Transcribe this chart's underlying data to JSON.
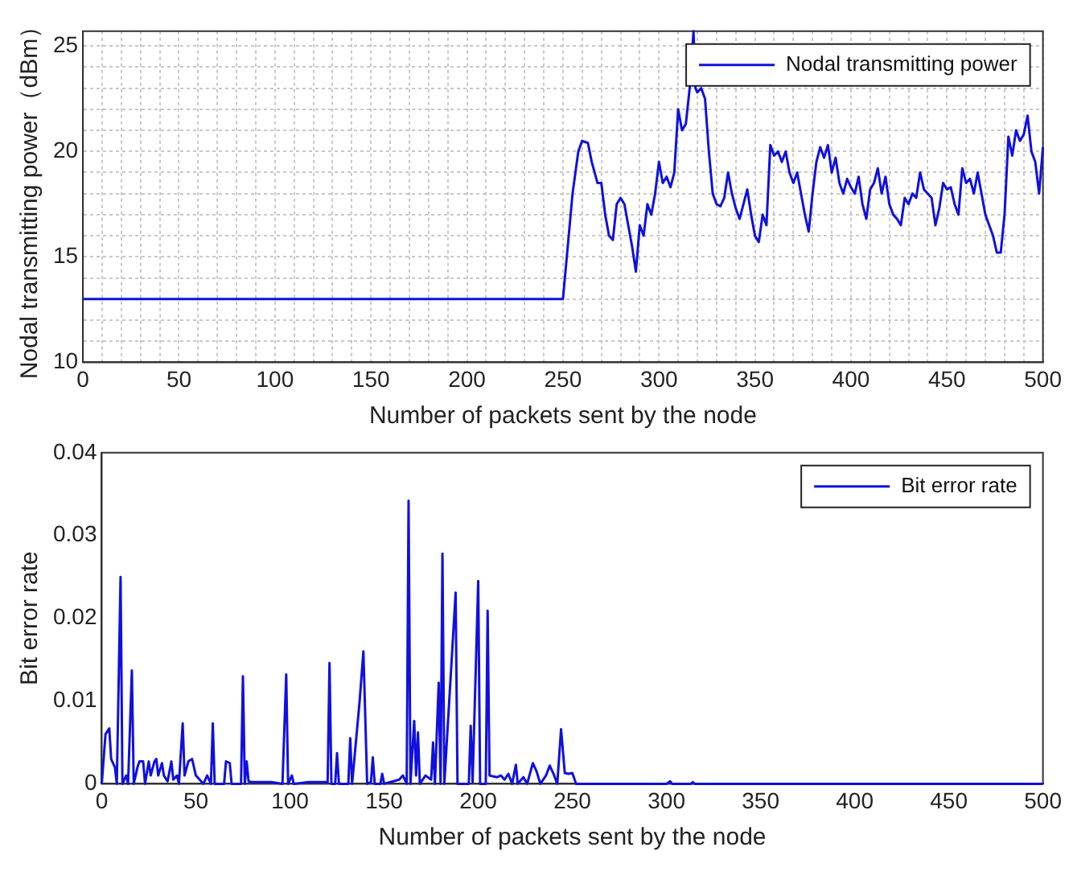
{
  "chart_data": [
    {
      "type": "line",
      "xlabel": "Number of packets sent by the node",
      "ylabel": "Nodal transmitting power（dBm）",
      "xlim": [
        0,
        500
      ],
      "ylim": [
        10,
        25.7
      ],
      "xticks": [
        0,
        {
          "value": 10,
          "label": null
        },
        {
          "value": 20,
          "label": null
        },
        {
          "value": 30,
          "label": null
        },
        {
          "value": 40,
          "label": null
        },
        50,
        {
          "value": 60,
          "label": null
        },
        {
          "value": 70,
          "label": null
        },
        {
          "value": 80,
          "label": null
        },
        {
          "value": 90,
          "label": null
        },
        100,
        {
          "value": 110,
          "label": null
        },
        {
          "value": 120,
          "label": null
        },
        {
          "value": 130,
          "label": null
        },
        {
          "value": 140,
          "label": null
        },
        150,
        {
          "value": 160,
          "label": null
        },
        {
          "value": 170,
          "label": null
        },
        {
          "value": 180,
          "label": null
        },
        {
          "value": 190,
          "label": null
        },
        200,
        {
          "value": 210,
          "label": null
        },
        {
          "value": 220,
          "label": null
        },
        {
          "value": 230,
          "label": null
        },
        {
          "value": 240,
          "label": null
        },
        250,
        {
          "value": 260,
          "label": null
        },
        {
          "value": 270,
          "label": null
        },
        {
          "value": 280,
          "label": null
        },
        {
          "value": 290,
          "label": null
        },
        300,
        {
          "value": 310,
          "label": null
        },
        {
          "value": 320,
          "label": null
        },
        {
          "value": 330,
          "label": null
        },
        {
          "value": 340,
          "label": null
        },
        350,
        {
          "value": 360,
          "label": null
        },
        {
          "value": 370,
          "label": null
        },
        {
          "value": 380,
          "label": null
        },
        {
          "value": 390,
          "label": null
        },
        400,
        {
          "value": 410,
          "label": null
        },
        {
          "value": 420,
          "label": null
        },
        {
          "value": 430,
          "label": null
        },
        {
          "value": 440,
          "label": null
        },
        450,
        {
          "value": 460,
          "label": null
        },
        {
          "value": 470,
          "label": null
        },
        {
          "value": 480,
          "label": null
        },
        {
          "value": 490,
          "label": null
        },
        500
      ],
      "yticks": [
        10,
        {
          "value": 11,
          "label": null
        },
        {
          "value": 12,
          "label": null
        },
        {
          "value": 13,
          "label": null
        },
        {
          "value": 14,
          "label": null
        },
        15,
        {
          "value": 16,
          "label": null
        },
        {
          "value": 17,
          "label": null
        },
        {
          "value": 18,
          "label": null
        },
        {
          "value": 19,
          "label": null
        },
        20,
        {
          "value": 21,
          "label": null
        },
        {
          "value": 22,
          "label": null
        },
        {
          "value": 23,
          "label": null
        },
        {
          "value": 24,
          "label": null
        },
        25
      ],
      "grid": true,
      "legend": "top right",
      "series": [
        {
          "name": "Nodal transmitting power",
          "color": "#1010e0",
          "x": [
            0,
            250,
            252,
            255,
            258,
            260,
            263,
            265,
            268,
            270,
            272,
            274,
            276,
            278,
            280,
            282,
            284,
            286,
            288,
            290,
            292,
            294,
            296,
            298,
            300,
            302,
            304,
            306,
            308,
            310,
            312,
            314,
            316,
            318,
            319,
            320,
            322,
            324,
            326,
            328,
            330,
            332,
            334,
            336,
            338,
            340,
            342,
            344,
            346,
            348,
            350,
            352,
            354,
            356,
            358,
            360,
            362,
            364,
            366,
            368,
            370,
            372,
            374,
            376,
            378,
            380,
            382,
            384,
            386,
            388,
            390,
            392,
            394,
            396,
            398,
            400,
            402,
            404,
            406,
            408,
            410,
            412,
            414,
            416,
            418,
            420,
            422,
            424,
            426,
            428,
            430,
            432,
            434,
            436,
            438,
            440,
            442,
            444,
            446,
            448,
            450,
            452,
            454,
            456,
            458,
            460,
            462,
            464,
            466,
            468,
            470,
            472,
            474,
            476,
            478,
            480,
            482,
            484,
            486,
            488,
            490,
            492,
            494,
            496,
            498,
            500
          ],
          "values": [
            13,
            13,
            15,
            18,
            20,
            20.5,
            20.4,
            19.5,
            18.5,
            18.5,
            17,
            16,
            15.8,
            17.5,
            17.8,
            17.5,
            16.5,
            15.5,
            14.3,
            16.5,
            16,
            17.5,
            17,
            18,
            19.5,
            18.5,
            18.8,
            18.3,
            19,
            22,
            21,
            21.3,
            23,
            25.7,
            23,
            22.8,
            23,
            22.5,
            20,
            18,
            17.5,
            17.4,
            17.8,
            19,
            18,
            17.3,
            16.8,
            17.5,
            18.2,
            17,
            16,
            15.7,
            17,
            16.5,
            20.3,
            19.8,
            20,
            19.5,
            20,
            19,
            18.5,
            19,
            18,
            17,
            16.2,
            18,
            19.5,
            20.2,
            19.7,
            20.3,
            19,
            19.7,
            18.5,
            18,
            18.7,
            18.3,
            18,
            18.8,
            17.5,
            16.8,
            18.2,
            18.5,
            19.2,
            18,
            18.8,
            17.5,
            17,
            16.8,
            16.5,
            17.8,
            17.5,
            18,
            17.8,
            19,
            18.2,
            18,
            17.8,
            16.5,
            17.3,
            18.5,
            18.2,
            18.3,
            17.5,
            17,
            19.2,
            18.5,
            18.7,
            18,
            19,
            18,
            17,
            16.5,
            16,
            15.2,
            15.2,
            17,
            20.7,
            19.8,
            21,
            20.5,
            20.8,
            21.7,
            20,
            19.5,
            18,
            20.2
          ]
        }
      ]
    },
    {
      "type": "line",
      "xlabel": "Number of packets sent by the node",
      "ylabel": "Bit error rate",
      "xlim": [
        0,
        500
      ],
      "ylim": [
        0,
        0.04
      ],
      "xticks": [
        0,
        50,
        100,
        150,
        200,
        250,
        300,
        350,
        400,
        450,
        500
      ],
      "yticks": [
        0,
        0.01,
        0.02,
        0.03,
        0.04
      ],
      "legend": "top right",
      "series": [
        {
          "name": "Bit error rate",
          "color": "#1010e0",
          "x": [
            0,
            2,
            4,
            5,
            7,
            8,
            10,
            11,
            13,
            14,
            16,
            17,
            19,
            20,
            22,
            23,
            25,
            26,
            28,
            29,
            30,
            32,
            33,
            35,
            37,
            38,
            40,
            41,
            43,
            44,
            46,
            48,
            50,
            52,
            54,
            56,
            58,
            59,
            60,
            65,
            66,
            68,
            69,
            74,
            75,
            76,
            77,
            78,
            80,
            90,
            96,
            98,
            99,
            101,
            102,
            110,
            120,
            121,
            122,
            124,
            125,
            126,
            131,
            132,
            133,
            137,
            139,
            141,
            143,
            144,
            145,
            148,
            149,
            150,
            158,
            160,
            162,
            163,
            164,
            166,
            167,
            168,
            169,
            172,
            175,
            176,
            177,
            179,
            180,
            181,
            182,
            188,
            189,
            195,
            196,
            197,
            200,
            201,
            204,
            205,
            206,
            210,
            212,
            214,
            216,
            218,
            220,
            221,
            224,
            226,
            229,
            231,
            233,
            236,
            238,
            240,
            242,
            244,
            246,
            248,
            250,
            252,
            300,
            302,
            303,
            313,
            314,
            315,
            500
          ],
          "values": [
            0,
            0.006,
            0.0067,
            0.003,
            0.002,
            0,
            0.025,
            0,
            0.001,
            0,
            0.0137,
            0,
            0.002,
            0.0027,
            0.0027,
            0,
            0.0027,
            0.001,
            0.0027,
            0.003,
            0.001,
            0.0025,
            0.001,
            0.0003,
            0.0027,
            0.0005,
            0.001,
            0,
            0.0073,
            0.001,
            0.0027,
            0.003,
            0.001,
            0.0005,
            0,
            0.001,
            0,
            0.0073,
            0,
            0,
            0.0027,
            0.0025,
            0,
            0,
            0.013,
            0,
            0.0027,
            0.0003,
            0.0002,
            0.0002,
            0,
            0.0132,
            0,
            0.001,
            0,
            0.0002,
            0.0002,
            0.0146,
            0,
            0,
            0.0037,
            0,
            0,
            0.0055,
            0,
            0.01,
            0.016,
            0,
            0.0002,
            0.0032,
            0,
            0,
            0.0012,
            0,
            0.0005,
            0.001,
            0,
            0.0342,
            0,
            0.0076,
            0.001,
            0.0062,
            0,
            0.001,
            0.0005,
            0.005,
            0,
            0.0122,
            0,
            0.0278,
            0,
            0.0231,
            0,
            0,
            0.007,
            0.0002,
            0.0245,
            0,
            0,
            0.0209,
            0.001,
            0.0008,
            0.001,
            0.0005,
            0.0012,
            0,
            0.0023,
            0,
            0.0008,
            0,
            0.0025,
            0.0015,
            0,
            0.001,
            0.0022,
            0.0012,
            0,
            0.0066,
            0.0013,
            0.0012,
            0.0013,
            0,
            0,
            0.0003,
            0,
            0,
            0.0002,
            0,
            0
          ]
        }
      ]
    }
  ]
}
